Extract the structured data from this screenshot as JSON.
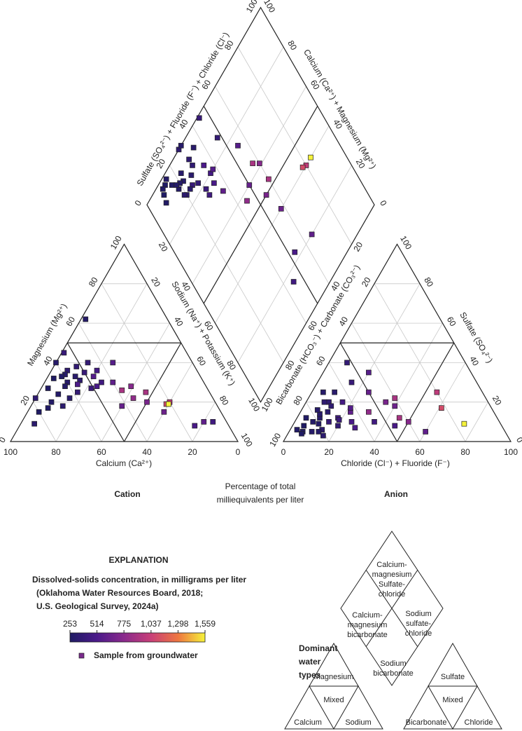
{
  "chart_data": {
    "type": "piper",
    "ternary_ticks": [
      0,
      20,
      40,
      60,
      80,
      100
    ],
    "axes": {
      "cation_calcium": "Calcium (Ca²⁺)",
      "cation_magnesium": "Magnesium (Mg²⁺)",
      "cation_sodium": "Sodium (Na⁺) + Potassium (K⁺)",
      "anion_chloride": "Chloride (Cl⁻) + Fluoride (F⁻)",
      "anion_sulfate": "Sulfate (SO₄²⁻)",
      "anion_bicarbonate": "Bicarbonate (HCO₃⁻) + Carbonate (CO₃²⁻)",
      "diamond_sulfate_chloride": "Sulfate (SO₄²⁻) + Fluoride (F⁻) + Chloride (Cl⁻)",
      "diamond_calcium_magnesium": "Calcium (Ca²⁺) + Magnesium (Mg²⁺)"
    },
    "cation_label": "Cation",
    "anion_label": "Anion",
    "units_label": [
      "Percentage of total",
      "milliequivalents per liter"
    ],
    "colormap": [
      "#1f1b63",
      "#4b1a8a",
      "#8a2a8c",
      "#c83f78",
      "#ee7640",
      "#f5f23a"
    ],
    "colorbar_lim": [
      253,
      1559
    ],
    "colorbar_ticks": [
      253,
      514,
      775,
      {
        "value": 1037,
        "label": "1,037"
      },
      {
        "value": 1298,
        "label": "1,298"
      },
      {
        "value": 1559,
        "label": "1,559"
      }
    ],
    "samples": {
      "calcium": [
        60,
        55,
        62,
        50,
        58,
        65,
        45,
        52,
        70,
        48,
        57,
        63,
        40,
        54,
        59,
        67,
        44,
        51,
        61,
        56,
        72,
        47,
        35,
        30,
        25,
        38,
        42,
        33,
        20,
        22,
        21,
        10,
        15,
        6,
        85,
        75,
        80,
        68,
        78,
        35,
        60,
        54,
        36,
        46,
        28
      ],
      "magnesium": [
        30,
        33,
        28,
        35,
        25,
        32,
        30,
        38,
        27,
        28,
        36,
        22,
        30,
        31,
        34,
        24,
        36,
        27,
        33,
        29,
        20,
        33,
        22,
        20,
        15,
        26,
        18,
        28,
        20,
        19,
        19,
        10,
        8,
        10,
        9,
        17,
        15,
        18,
        22,
        40,
        40,
        45,
        62,
        40,
        25
      ],
      "chloride": [
        10,
        12,
        8,
        15,
        20,
        5,
        18,
        10,
        6,
        25,
        12,
        9,
        22,
        14,
        7,
        11,
        16,
        19,
        4,
        28,
        13,
        21,
        30,
        35,
        40,
        45,
        25,
        50,
        55,
        61,
        75,
        60,
        45,
        35,
        10,
        3,
        6,
        16,
        8,
        20,
        5,
        15,
        10,
        8,
        38
      ],
      "sulfate": [
        12,
        15,
        10,
        10,
        8,
        8,
        12,
        20,
        5,
        10,
        18,
        14,
        15,
        6,
        16,
        9,
        20,
        11,
        12,
        7,
        5,
        17,
        15,
        20,
        18,
        12,
        25,
        10,
        25,
        17,
        9,
        5,
        8,
        10,
        25,
        6,
        4,
        3,
        20,
        35,
        25,
        30,
        5,
        40,
        22
      ],
      "dissolved_solids": [
        300,
        320,
        280,
        400,
        380,
        260,
        450,
        360,
        270,
        500,
        350,
        310,
        600,
        340,
        300,
        290,
        480,
        420,
        270,
        520,
        285,
        550,
        800,
        700,
        650,
        900,
        620,
        760,
        1000,
        1100,
        1559,
        600,
        500,
        450,
        320,
        270,
        260,
        330,
        350,
        560,
        300,
        400,
        290,
        380,
        900
      ]
    },
    "explanation": {
      "heading": "EXPLANATION",
      "description": [
        "Dissolved-solids concentration, in milligrams per liter",
        "(Oklahoma Water Resources Board, 2018;",
        "U.S. Geological Survey, 2024a)"
      ],
      "legend_marker": "Sample from groundwater",
      "legend_marker_color": "#7a2a8c"
    }
  },
  "water_types": {
    "title": [
      "Dominant",
      "water",
      "types"
    ],
    "diamond": {
      "top": [
        "Calcium-",
        "magnesium",
        "Sulfate-",
        "chloride"
      ],
      "left": [
        "Calcium-",
        "magnesium",
        "bicarbonate"
      ],
      "right": [
        "Sodium",
        "sulfate-",
        "chloride"
      ],
      "bottom": [
        "Sodium",
        "bicarbonate"
      ]
    },
    "cation": {
      "top": "Magnesium",
      "middle": "Mixed",
      "left": "Calcium",
      "right": "Sodium"
    },
    "anion": {
      "top": "Sulfate",
      "middle": "Mixed",
      "left": "Bicarbonate",
      "right": "Chloride"
    }
  }
}
